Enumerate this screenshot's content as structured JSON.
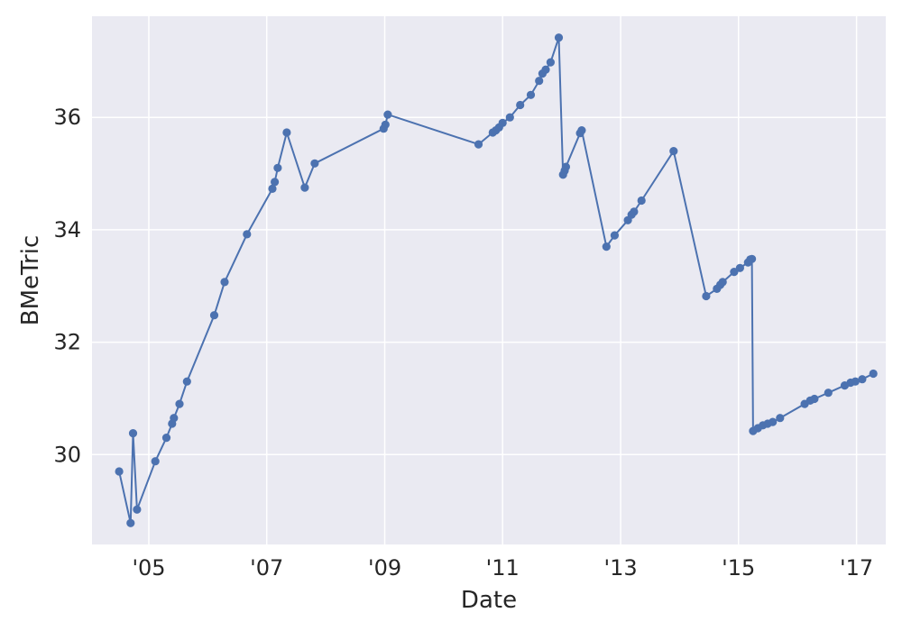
{
  "chart_data": {
    "type": "line",
    "title": "",
    "xlabel": "Date",
    "ylabel": "BMeTric",
    "grid": true,
    "legend": "none",
    "colors": {
      "background": "#eaeaf2",
      "grid": "#ffffff",
      "series": "#4c72b0",
      "text": "#262626"
    },
    "xlim": [
      "2004-01-15",
      "2017-07-01"
    ],
    "ylim": [
      28.4,
      37.8
    ],
    "x_ticks": [
      {
        "date": "2005-01-01",
        "label": "'05"
      },
      {
        "date": "2007-01-01",
        "label": "'07"
      },
      {
        "date": "2009-01-01",
        "label": "'09"
      },
      {
        "date": "2011-01-01",
        "label": "'11"
      },
      {
        "date": "2013-01-01",
        "label": "'13"
      },
      {
        "date": "2015-01-01",
        "label": "'15"
      },
      {
        "date": "2017-01-01",
        "label": "'17"
      }
    ],
    "y_ticks": [
      {
        "value": 30,
        "label": "30"
      },
      {
        "value": 32,
        "label": "32"
      },
      {
        "value": 34,
        "label": "34"
      },
      {
        "value": 36,
        "label": "36"
      }
    ],
    "series": [
      {
        "points": [
          [
            "2004-07-01",
            29.7
          ],
          [
            "2004-09-10",
            28.78
          ],
          [
            "2004-09-25",
            30.38
          ],
          [
            "2004-10-20",
            29.02
          ],
          [
            "2005-02-10",
            29.88
          ],
          [
            "2005-04-20",
            30.3
          ],
          [
            "2005-05-25",
            30.55
          ],
          [
            "2005-06-05",
            30.65
          ],
          [
            "2005-07-10",
            30.9
          ],
          [
            "2005-08-25",
            31.3
          ],
          [
            "2006-02-10",
            32.48
          ],
          [
            "2006-04-15",
            33.07
          ],
          [
            "2006-09-01",
            33.92
          ],
          [
            "2007-02-05",
            34.73
          ],
          [
            "2007-02-20",
            34.85
          ],
          [
            "2007-03-10",
            35.1
          ],
          [
            "2007-05-05",
            35.73
          ],
          [
            "2007-08-25",
            34.75
          ],
          [
            "2007-10-25",
            35.18
          ],
          [
            "2008-12-25",
            35.8
          ],
          [
            "2009-01-05",
            35.87
          ],
          [
            "2009-01-20",
            36.05
          ],
          [
            "2010-08-05",
            35.52
          ],
          [
            "2010-11-01",
            35.73
          ],
          [
            "2010-11-20",
            35.77
          ],
          [
            "2010-12-10",
            35.82
          ],
          [
            "2011-01-01",
            35.9
          ],
          [
            "2011-02-15",
            36.0
          ],
          [
            "2011-04-20",
            36.22
          ],
          [
            "2011-06-25",
            36.4
          ],
          [
            "2011-08-15",
            36.65
          ],
          [
            "2011-09-05",
            36.78
          ],
          [
            "2011-09-25",
            36.85
          ],
          [
            "2011-10-25",
            36.98
          ],
          [
            "2011-12-15",
            37.42
          ],
          [
            "2012-01-10",
            34.98
          ],
          [
            "2012-01-20",
            35.05
          ],
          [
            "2012-01-28",
            35.12
          ],
          [
            "2012-04-25",
            35.72
          ],
          [
            "2012-05-05",
            35.77
          ],
          [
            "2012-10-05",
            33.7
          ],
          [
            "2012-11-25",
            33.9
          ],
          [
            "2013-02-15",
            34.17
          ],
          [
            "2013-03-10",
            34.27
          ],
          [
            "2013-03-25",
            34.32
          ],
          [
            "2013-05-10",
            34.52
          ],
          [
            "2013-11-25",
            35.4
          ],
          [
            "2014-06-15",
            32.82
          ],
          [
            "2014-08-20",
            32.95
          ],
          [
            "2014-09-10",
            33.02
          ],
          [
            "2014-09-25",
            33.07
          ],
          [
            "2014-12-05",
            33.25
          ],
          [
            "2015-01-10",
            33.32
          ],
          [
            "2015-03-01",
            33.42
          ],
          [
            "2015-03-15",
            33.47
          ],
          [
            "2015-03-25",
            33.48
          ],
          [
            "2015-04-01",
            30.42
          ],
          [
            "2015-05-01",
            30.47
          ],
          [
            "2015-06-01",
            30.52
          ],
          [
            "2015-07-01",
            30.55
          ],
          [
            "2015-08-01",
            30.58
          ],
          [
            "2015-09-15",
            30.65
          ],
          [
            "2016-02-15",
            30.9
          ],
          [
            "2016-03-20",
            30.96
          ],
          [
            "2016-04-15",
            30.99
          ],
          [
            "2016-07-10",
            31.1
          ],
          [
            "2016-10-20",
            31.23
          ],
          [
            "2016-11-25",
            31.28
          ],
          [
            "2016-12-25",
            31.3
          ],
          [
            "2017-02-05",
            31.34
          ],
          [
            "2017-04-15",
            31.44
          ]
        ]
      }
    ]
  }
}
